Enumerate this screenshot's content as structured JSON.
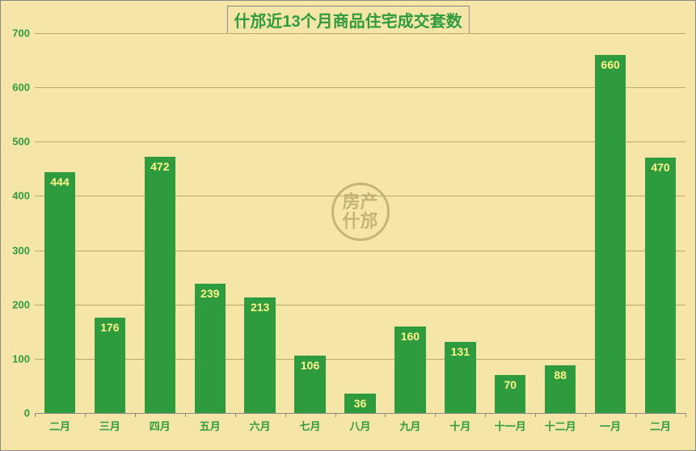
{
  "chart": {
    "type": "bar",
    "title": "什邡近13个月商品住宅成交套数",
    "title_color": "#2e9b3f",
    "title_fontsize": 20,
    "background_color": "#f5e6a8",
    "border_color": "#888888",
    "grid_color": "#b8a968",
    "axis_line_color": "#888888",
    "categories": [
      "二月",
      "三月",
      "四月",
      "五月",
      "六月",
      "七月",
      "八月",
      "九月",
      "十月",
      "十一月",
      "十二月",
      "一月",
      "二月"
    ],
    "values": [
      444,
      176,
      472,
      239,
      213,
      106,
      36,
      160,
      131,
      70,
      88,
      660,
      470
    ],
    "bar_color": "#2e9b3f",
    "value_label_color": "#fff78a",
    "value_label_fontsize": 14,
    "x_label_color": "#2e9b3f",
    "x_label_fontsize": 13,
    "y_label_color": "#2e9b3f",
    "y_label_fontsize": 13,
    "ylim": [
      0,
      700
    ],
    "ytick_step": 100,
    "bar_width_ratio": 0.62,
    "watermark": {
      "line1": "房产",
      "line2": "什邡",
      "color": "#c4b478",
      "size": 72,
      "fontsize": 22
    }
  }
}
